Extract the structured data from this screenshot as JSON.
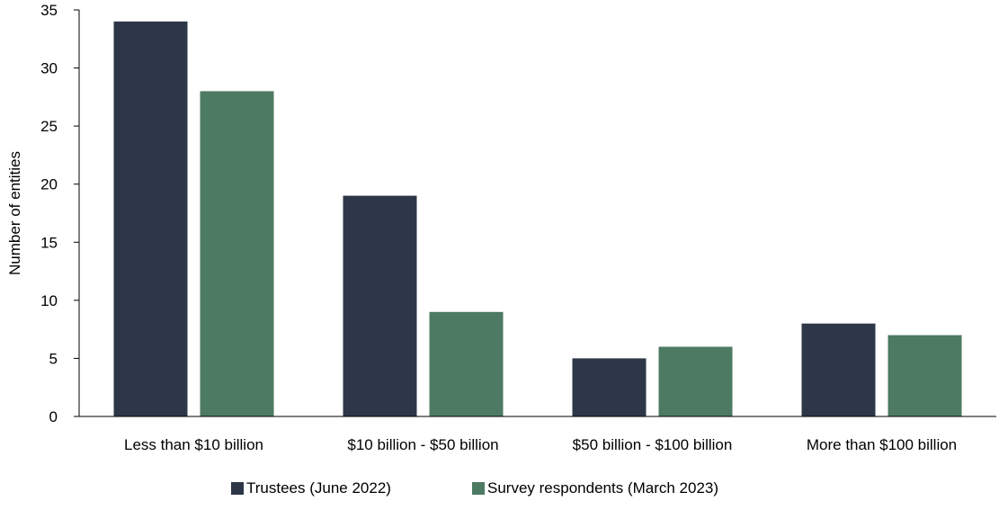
{
  "chart_data": {
    "type": "bar",
    "title": "",
    "xlabel": "",
    "ylabel": "Number of entities",
    "ylim": [
      0,
      35
    ],
    "yticks": [
      0,
      5,
      10,
      15,
      20,
      25,
      30,
      35
    ],
    "grid": false,
    "legend_position": "bottom",
    "categories": [
      "Less than $10 billion",
      "$10 billion - $50 billion",
      "$50 billion - $100 billion",
      "More than $100 billion"
    ],
    "series": [
      {
        "name": "Trustees (June 2022)",
        "color": "#2d3748",
        "values": [
          34,
          19,
          5,
          8
        ]
      },
      {
        "name": "Survey respondents (March 2023)",
        "color": "#4d7a62",
        "values": [
          28,
          9,
          6,
          7
        ]
      }
    ]
  }
}
